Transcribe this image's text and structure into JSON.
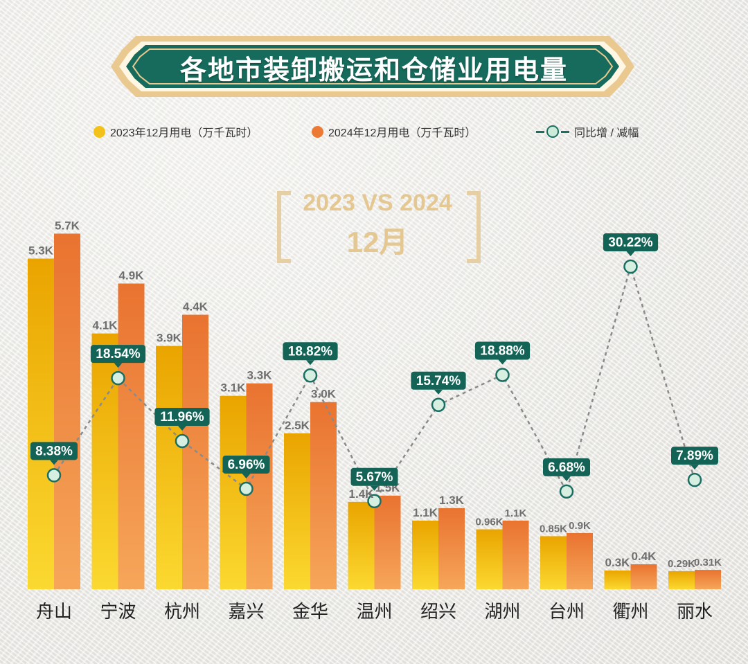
{
  "title": "各地市装卸搬运和仓储业用电量",
  "legend": {
    "s2023": "2023年12月用电（万千瓦时）",
    "s2024": "2024年12月用电（万千瓦时）",
    "yoy": "同比增 / 减幅"
  },
  "compare_label": {
    "top": "2023 VS 2024",
    "bottom": "12月"
  },
  "colors": {
    "bar_2023_top": "#eaa400",
    "bar_2023_bottom": "#fbd930",
    "bar_2024_top": "#e97330",
    "bar_2024_bottom": "#f6a65a",
    "line": "#8a8a8a",
    "marker_fill": "#d6efe1",
    "marker_stroke": "#1a6e62",
    "label_bg": "#136457",
    "banner": "#166b5c",
    "banner_border": "#e9c98f"
  },
  "chart_data": {
    "type": "bar",
    "categories": [
      "舟山",
      "宁波",
      "杭州",
      "嘉兴",
      "金华",
      "温州",
      "绍兴",
      "湖州",
      "台州",
      "衢州",
      "丽水"
    ],
    "series": [
      {
        "name": "2023年12月用电（万千瓦时）",
        "values": [
          5300,
          4100,
          3900,
          3100,
          2500,
          1400,
          1100,
          960,
          850,
          300,
          290
        ],
        "labels": [
          "5.3K",
          "4.1K",
          "3.9K",
          "3.1K",
          "2.5K",
          "1.4K",
          "1.1K",
          "0.96K",
          "0.85K",
          "0.3K",
          "0.29K"
        ]
      },
      {
        "name": "2024年12月用电（万千瓦时）",
        "values": [
          5700,
          4900,
          4400,
          3300,
          3000,
          1500,
          1300,
          1100,
          900,
          400,
          310
        ],
        "labels": [
          "5.7K",
          "4.9K",
          "4.4K",
          "3.3K",
          "3.0K",
          "1.5K",
          "1.3K",
          "1.1K",
          "0.9K",
          "0.4K",
          "0.31K"
        ]
      },
      {
        "name": "同比增 / 减幅",
        "type": "line",
        "values": [
          8.38,
          18.54,
          11.96,
          6.96,
          18.82,
          5.67,
          15.74,
          18.88,
          6.68,
          30.22,
          7.89
        ],
        "labels": [
          "8.38%",
          "18.54%",
          "11.96%",
          "6.96%",
          "18.82%",
          "5.67%",
          "15.74%",
          "18.88%",
          "6.68%",
          "30.22%",
          "7.89%"
        ]
      }
    ]
  }
}
